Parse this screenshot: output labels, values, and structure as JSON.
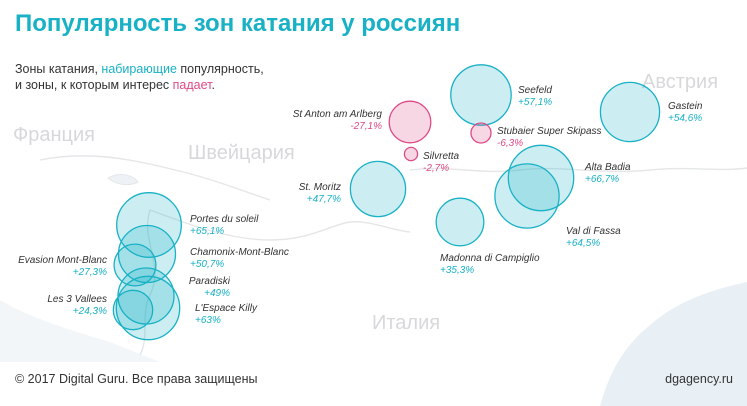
{
  "title": "Популярность зон катания у россиян",
  "subtitle": {
    "line1_a": "Зоны катания, ",
    "line1_up": "набирающие",
    "line1_b": " популярность,",
    "line2_a": "и зоны, к которым интерес ",
    "line2_down": "падает",
    "line2_b": "."
  },
  "map_labels": {
    "france": "Франция",
    "switzerland": "Швейцария",
    "austria": "Австрия",
    "italy": "Италия"
  },
  "footer": {
    "copyright": "© 2017 Digital Guru. Все права защищены",
    "site": "dgagency.ru"
  },
  "colors": {
    "growth": "#19b1c5",
    "decline": "#dd4a86",
    "growth_fill": "rgba(25,177,197,0.22)",
    "decline_fill": "rgba(221,74,134,0.22)",
    "map_land": "#ffffff",
    "map_water": "#e8f0f6"
  },
  "chart_data": {
    "type": "scatter",
    "title": "Популярность зон катания у россиян",
    "size_encoding": "bubble area ~ |change in popularity|",
    "series": [
      {
        "resorts": [
          {
            "name": "Portes du soleil",
            "value": "+65,1%",
            "change": 65.1
          },
          {
            "name": "Chamonix-Mont-Blanc",
            "value": "+50,7%",
            "change": 50.7
          },
          {
            "name": "Evasion Mont-Blanc",
            "value": "+27,3%",
            "change": 27.3
          },
          {
            "name": "Paradiski",
            "value": "+49%",
            "change": 49
          },
          {
            "name": "Les 3 Vallees",
            "value": "+24,3%",
            "change": 24.3
          },
          {
            "name": "L'Espace Killy",
            "value": "+63%",
            "change": 63
          },
          {
            "name": "St. Moritz",
            "value": "+47,7%",
            "change": 47.7
          },
          {
            "name": "Madonna di Campiglio",
            "value": "+35,3%",
            "change": 35.3
          },
          {
            "name": "Val di Fassa",
            "value": "+64,5%",
            "change": 64.5
          },
          {
            "name": "Alta Badia",
            "value": "+66,7%",
            "change": 66.7
          },
          {
            "name": "Seefeld",
            "value": "+57,1%",
            "change": 57.1
          },
          {
            "name": "Gastein",
            "value": "+54,6%",
            "change": 54.6
          },
          {
            "name": "St Anton am Arlberg",
            "value": "-27,1%",
            "change": -27.1
          },
          {
            "name": "Silvretta",
            "value": "-2,7%",
            "change": -2.7
          },
          {
            "name": "Stubaier Super Skipass",
            "value": "-6,3%",
            "change": -6.3
          }
        ]
      }
    ]
  }
}
